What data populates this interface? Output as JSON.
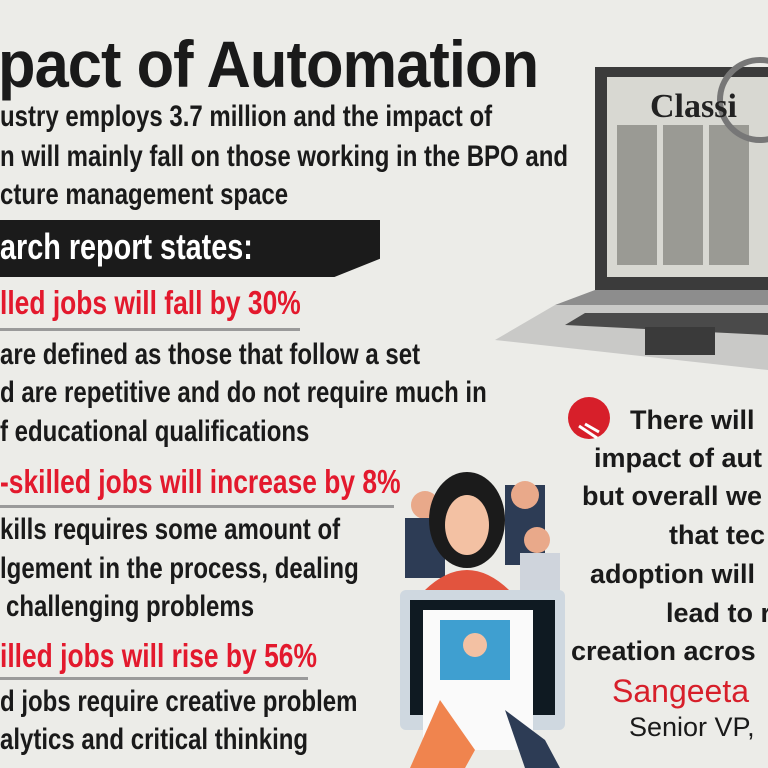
{
  "title": "pact of Automation",
  "intro": [
    "ustry employs 3.7 million and the impact of",
    "n will mainly fall on those working in the BPO and",
    "cture management space"
  ],
  "banner": "arch report states:",
  "findings": [
    {
      "heading": "lled jobs will fall by 30%",
      "body": [
        "are defined as those that follow a set",
        "d are repetitive and do not require much in",
        "f educational qualifications"
      ]
    },
    {
      "heading": "-skilled jobs will increase by 8%",
      "body": [
        "kills requires some amount of",
        "lgement in the process, dealing",
        "challenging problems"
      ]
    },
    {
      "heading": "illed jobs will rise by 56%",
      "body": [
        "d jobs require creative problem",
        "alytics and critical thinking"
      ]
    }
  ],
  "laptop_screen_text": "Classi",
  "quote": {
    "lines": [
      "There will",
      "impact of aut",
      "but overall we",
      "that tec",
      "adoption will",
      "lead to r",
      "creation acros"
    ],
    "name": "Sangeeta",
    "role": "Senior VP,"
  },
  "colors": {
    "accent": "#e3192d",
    "background": "#ecece8",
    "banner": "#1b1b1b"
  }
}
